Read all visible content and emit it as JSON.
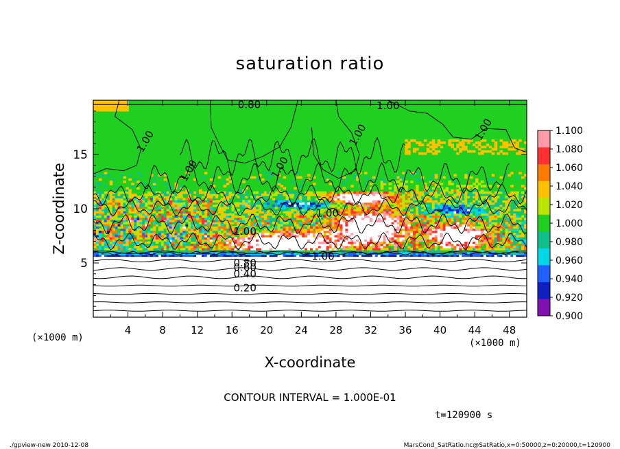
{
  "chart_data": {
    "type": "heatmap",
    "title": "saturation ratio",
    "xlabel": "X-coordinate",
    "ylabel": "Z-coordinate",
    "x_unit_label": "(×1000 m)",
    "y_unit_label": "(×1000 m)",
    "xlim": [
      0,
      50
    ],
    "ylim": [
      0,
      20
    ],
    "x_ticks": [
      4,
      8,
      12,
      16,
      20,
      24,
      28,
      32,
      36,
      40,
      44,
      48
    ],
    "y_ticks": [
      5,
      10,
      15
    ],
    "colorbar": {
      "labels": [
        "1.100",
        "1.080",
        "1.060",
        "1.040",
        "1.020",
        "1.000",
        "0.980",
        "0.960",
        "0.940",
        "0.920",
        "0.900"
      ],
      "colors": [
        "#ff9aa8",
        "#ff3030",
        "#ff7a00",
        "#ffc000",
        "#b8e600",
        "#20d020",
        "#10c08a",
        "#00d8e8",
        "#2060ff",
        "#1020c0",
        "#8010b0"
      ],
      "undefined_above_color": "#ffffff"
    },
    "contour_interval": "CONTOUR INTERVAL = 1.000E-01",
    "contour_labels": [
      {
        "text": "0.80",
        "x": 18.0,
        "z": 19.6
      },
      {
        "text": "1.00",
        "x": 34.0,
        "z": 19.5
      },
      {
        "text": "1.00",
        "x": 6.0,
        "z": 16.2
      },
      {
        "text": "1.00",
        "x": 30.5,
        "z": 16.8
      },
      {
        "text": "1.00",
        "x": 45.0,
        "z": 17.3
      },
      {
        "text": "1.00",
        "x": 11.0,
        "z": 13.5
      },
      {
        "text": "1.00",
        "x": 21.5,
        "z": 13.8
      },
      {
        "text": "1.00",
        "x": 27.0,
        "z": 9.6
      },
      {
        "text": "1.00",
        "x": 17.5,
        "z": 7.9
      },
      {
        "text": "1.00",
        "x": 26.5,
        "z": 5.6
      },
      {
        "text": "0.80",
        "x": 17.5,
        "z": 5.0
      },
      {
        "text": "0.60",
        "x": 17.5,
        "z": 4.6
      },
      {
        "text": "0.40",
        "x": 17.5,
        "z": 4.0
      },
      {
        "text": "0.20",
        "x": 17.5,
        "z": 2.7
      }
    ],
    "lower_contour_levels": [
      0.2,
      0.3,
      0.4,
      0.5,
      0.6,
      0.7,
      0.8,
      0.9
    ]
  },
  "time_label": "t=120900 s",
  "footer_left": "./gpview-new  2010-12-08",
  "footer_right": "MarsCond_SatRatio.nc@SatRatio,x=0:50000,z=0:20000,t=120900"
}
